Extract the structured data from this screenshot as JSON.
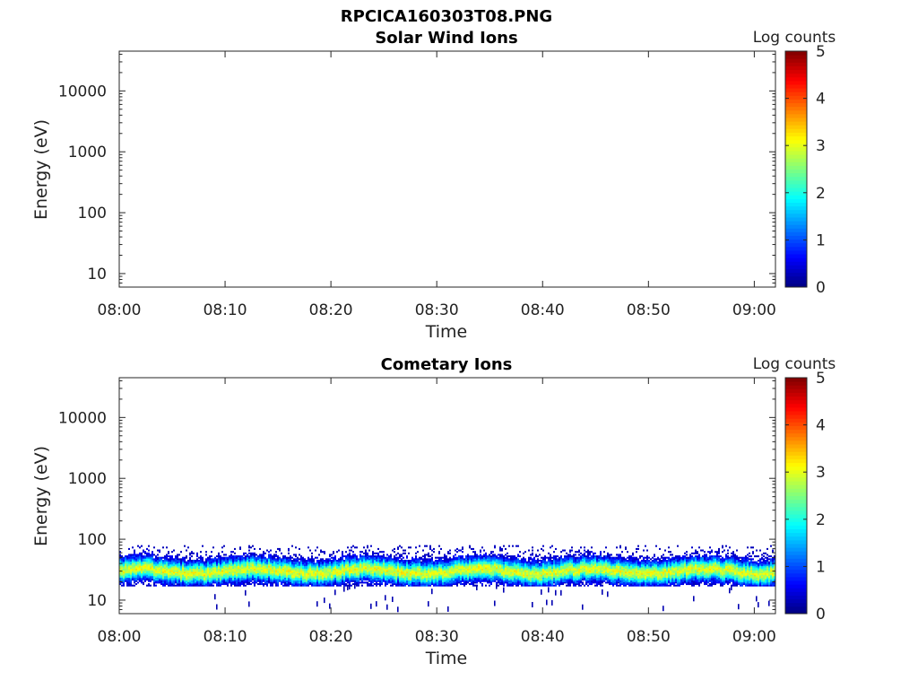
{
  "figure": {
    "title": "RPCICA160303T08.PNG"
  },
  "colormap": {
    "name": "jet",
    "stops": [
      "#00007f",
      "#0000ff",
      "#007fff",
      "#00ffff",
      "#7fff7f",
      "#ffff00",
      "#ff7f00",
      "#ff0000",
      "#7f0000"
    ]
  },
  "chart_data": [
    {
      "type": "heatmap",
      "title": "Solar Wind Ions",
      "xlabel": "Time",
      "ylabel": "Energy (eV)",
      "x_ticks": [
        "08:00",
        "08:10",
        "08:20",
        "08:30",
        "08:40",
        "08:50",
        "09:00"
      ],
      "xlim_minutes": [
        0,
        62
      ],
      "y_scale": "log",
      "y_ticks": [
        "10",
        "100",
        "1000",
        "10000"
      ],
      "ylim": [
        6,
        45000
      ],
      "colorbar": {
        "label": "Log counts",
        "ticks": [
          "0",
          "1",
          "2",
          "3",
          "4",
          "5"
        ],
        "range": [
          0,
          5
        ]
      },
      "bands": []
    },
    {
      "type": "heatmap",
      "title": "Cometary Ions",
      "xlabel": "Time",
      "ylabel": "Energy (eV)",
      "x_ticks": [
        "08:00",
        "08:10",
        "08:20",
        "08:30",
        "08:40",
        "08:50",
        "09:00"
      ],
      "xlim_minutes": [
        0,
        62
      ],
      "y_scale": "log",
      "y_ticks": [
        "10",
        "100",
        "1000",
        "10000"
      ],
      "ylim": [
        6,
        45000
      ],
      "colorbar": {
        "label": "Log counts",
        "ticks": [
          "0",
          "1",
          "2",
          "3",
          "4",
          "5"
        ],
        "range": [
          0,
          5
        ]
      },
      "bands": [
        {
          "energy_range_eV": [
            17,
            80
          ],
          "peak_energy_eV": 30,
          "peak_log_counts": 3.0,
          "time_range_minutes": [
            0,
            62
          ]
        }
      ]
    }
  ]
}
